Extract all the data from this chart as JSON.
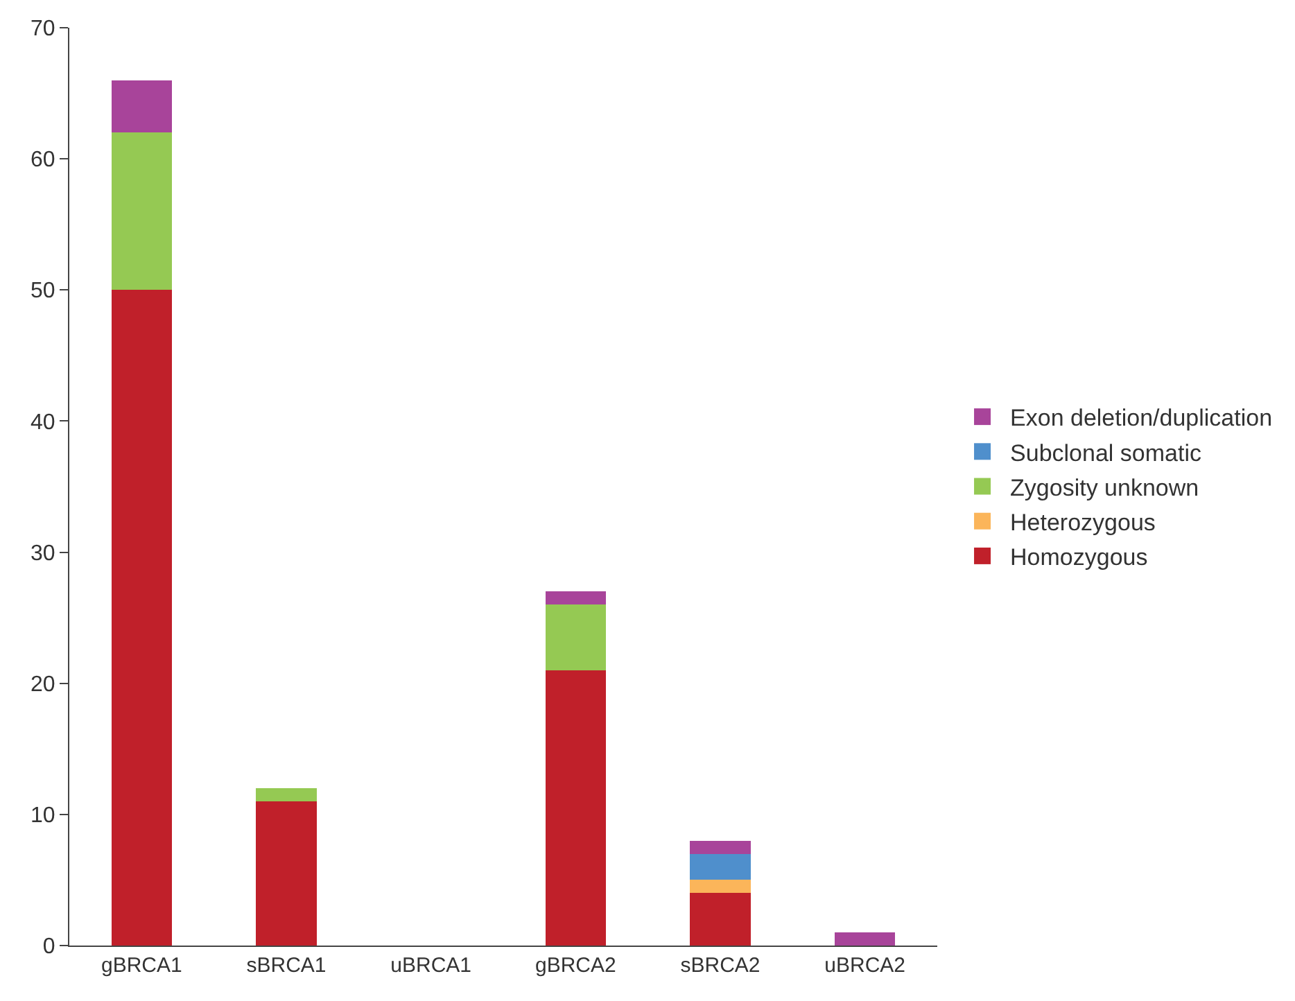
{
  "chart_data": {
    "type": "bar",
    "stacked": true,
    "categories": [
      "gBRCA1",
      "sBRCA1",
      "uBRCA1",
      "gBRCA2",
      "sBRCA2",
      "uBRCA2"
    ],
    "series": [
      {
        "name": "Homozygous",
        "color": "#c0202a",
        "values": [
          50,
          11,
          0,
          21,
          4,
          0
        ]
      },
      {
        "name": "Heterozygous",
        "color": "#fbb55a",
        "values": [
          0,
          0,
          0,
          0,
          1,
          0
        ]
      },
      {
        "name": "Zygosity unknown",
        "color": "#95c953",
        "values": [
          12,
          1,
          0,
          5,
          0,
          0
        ]
      },
      {
        "name": "Subclonal somatic",
        "color": "#4f8fcc",
        "values": [
          0,
          0,
          0,
          0,
          2,
          0
        ]
      },
      {
        "name": "Exon deletion/duplication",
        "color": "#a8449a",
        "values": [
          4,
          0,
          0,
          1,
          1,
          1
        ]
      }
    ],
    "ylim": [
      0,
      70
    ],
    "yticks": [
      0,
      10,
      20,
      30,
      40,
      50,
      60,
      70
    ],
    "legend": "right"
  }
}
